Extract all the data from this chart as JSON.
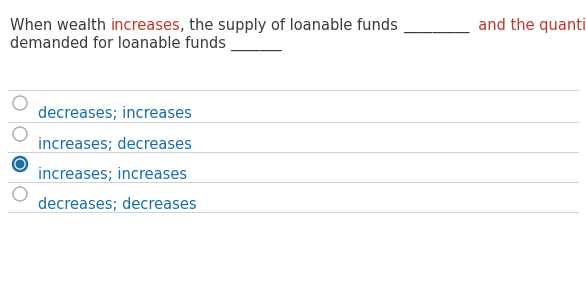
{
  "background_color": "#ffffff",
  "line1_parts": [
    {
      "text": "When wealth ",
      "color": "#3c3c3c"
    },
    {
      "text": "increases",
      "color": "#c0392b"
    },
    {
      "text": ", the supply of loanable funds ",
      "color": "#3c3c3c"
    },
    {
      "text": "_________",
      "color": "#3c3c3c"
    },
    {
      "text": "  and the quantity",
      "color": "#c0392b"
    }
  ],
  "line2_parts": [
    {
      "text": "demanded for loanable funds ",
      "color": "#3c3c3c"
    },
    {
      "text": "_______",
      "color": "#3c3c3c"
    }
  ],
  "options": [
    {
      "label": "decreases; increases",
      "selected": false
    },
    {
      "label": "increases; decreases",
      "selected": false
    },
    {
      "label": "increases; increases",
      "selected": true
    },
    {
      "label": "decreases; decreases",
      "selected": false
    }
  ],
  "option_color": "#1a6fa8",
  "separator_color": "#d0d0d0",
  "radio_border_color": "#aaaaaa",
  "radio_selected_color": "#1a6fa8",
  "font_size": 10.5,
  "option_font_size": 10.5
}
